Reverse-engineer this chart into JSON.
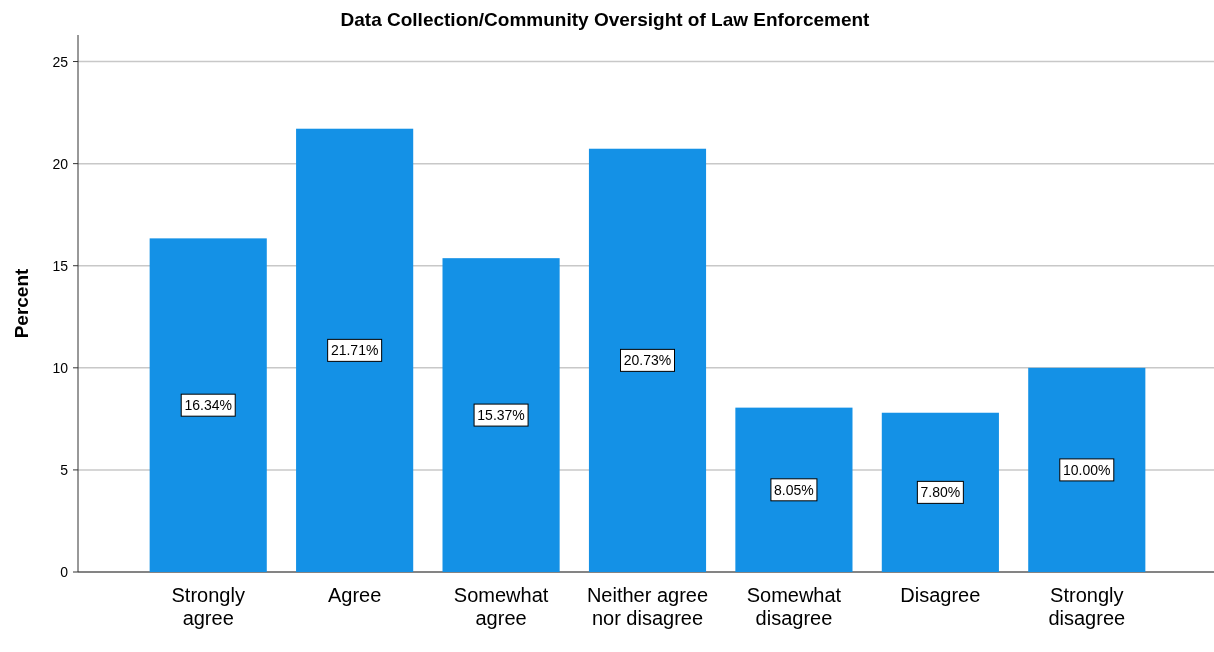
{
  "chart_data": {
    "type": "bar",
    "title": "Data Collection/Community Oversight of Law Enforcement",
    "ylabel": "Percent",
    "categories": [
      "Strongly agree",
      "Agree",
      "Somewhat agree",
      "Neither agree nor disagree",
      "Somewhat disagree",
      "Disagree",
      "Strongly disagree"
    ],
    "values": [
      16.34,
      21.71,
      15.37,
      20.73,
      8.05,
      7.8,
      10.0
    ],
    "value_labels": [
      "16.34%",
      "21.71%",
      "15.37%",
      "20.73%",
      "8.05%",
      "7.80%",
      "10.00%"
    ],
    "color": "#1491e6",
    "ylim": [
      0,
      26.3
    ],
    "yticks": [
      0,
      5,
      10,
      15,
      20,
      25
    ],
    "grid": "y"
  }
}
